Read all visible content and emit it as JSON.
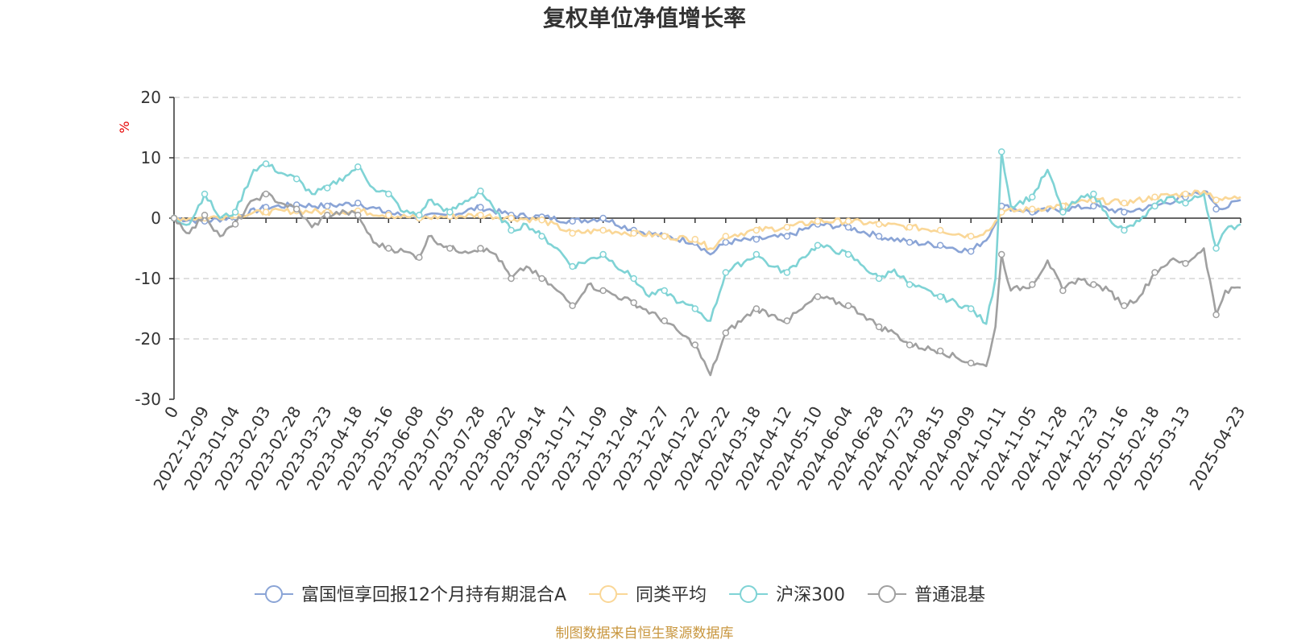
{
  "chart_data": {
    "type": "line",
    "title": "复权单位净值增长率",
    "ylabel": "%",
    "ylim": [
      -30,
      20
    ],
    "yticks": [
      20,
      10,
      0,
      -10,
      -20,
      -30
    ],
    "grid": true,
    "legend_position": "bottom",
    "source": "制图数据来自恒生聚源数据库",
    "x_labels": [
      "0",
      "2022-12-09",
      "2023-01-04",
      "2023-02-03",
      "2023-02-28",
      "2023-03-23",
      "2023-04-18",
      "2023-05-16",
      "2023-06-08",
      "2023-07-05",
      "2023-07-28",
      "2023-08-22",
      "2023-09-14",
      "2023-10-17",
      "2023-11-09",
      "2023-12-04",
      "2023-12-27",
      "2024-01-22",
      "2024-02-22",
      "2024-03-18",
      "2024-04-12",
      "2024-05-10",
      "2024-06-04",
      "2024-06-28",
      "2024-07-23",
      "2024-08-15",
      "2024-09-09",
      "2024-10-11",
      "2024-11-05",
      "2024-11-28",
      "2024-12-23",
      "2025-01-16",
      "2025-02-18",
      "2025-03-13",
      "2025-04-23"
    ],
    "x_label_index": [
      0,
      1,
      2,
      3,
      4,
      5,
      6,
      7,
      8,
      9,
      10,
      11,
      12,
      13,
      14,
      15,
      16,
      17,
      18,
      19,
      20,
      21,
      22,
      23,
      24,
      25,
      26,
      27,
      28,
      29,
      30,
      31,
      32,
      33,
      34.8
    ],
    "x_max_index": 34.8,
    "series": [
      {
        "name": "富国恒享回报12个月持有期混合A",
        "color": "#8aa4d6",
        "values": [
          [
            0,
            0
          ],
          [
            1,
            -0.5
          ],
          [
            2,
            0.2
          ],
          [
            3,
            1.8
          ],
          [
            4,
            2.2
          ],
          [
            5,
            2.0
          ],
          [
            6,
            2.5
          ],
          [
            7,
            0.8
          ],
          [
            8,
            0.2
          ],
          [
            9,
            0.5
          ],
          [
            10,
            1.8
          ],
          [
            11,
            0.5
          ],
          [
            12,
            0.2
          ],
          [
            13,
            -0.5
          ],
          [
            14,
            0
          ],
          [
            15,
            -2.0
          ],
          [
            16,
            -3.0
          ],
          [
            17,
            -4.0
          ],
          [
            17.5,
            -6.0
          ],
          [
            18,
            -4.0
          ],
          [
            19,
            -3.5
          ],
          [
            20,
            -3.0
          ],
          [
            21,
            -1.0
          ],
          [
            22,
            -1.5
          ],
          [
            23,
            -3.0
          ],
          [
            24,
            -4.0
          ],
          [
            25,
            -4.5
          ],
          [
            26,
            -5.5
          ],
          [
            26.6,
            -3.0
          ],
          [
            27,
            2.0
          ],
          [
            28,
            1.0
          ],
          [
            29,
            1.5
          ],
          [
            30,
            2.0
          ],
          [
            31,
            1.0
          ],
          [
            32,
            2.0
          ],
          [
            33,
            3.5
          ],
          [
            33.6,
            4.5
          ],
          [
            34.2,
            1.5
          ],
          [
            34.8,
            3.0
          ]
        ]
      },
      {
        "name": "同类平均",
        "color": "#fad797",
        "values": [
          [
            0,
            0
          ],
          [
            1,
            0
          ],
          [
            2,
            0.5
          ],
          [
            3,
            1.0
          ],
          [
            4,
            1.2
          ],
          [
            5,
            1.0
          ],
          [
            6,
            1.2
          ],
          [
            7,
            0.5
          ],
          [
            8,
            0
          ],
          [
            9,
            0.3
          ],
          [
            10,
            0.5
          ],
          [
            11,
            0
          ],
          [
            12,
            -0.3
          ],
          [
            13,
            -2.5
          ],
          [
            14,
            -2.0
          ],
          [
            15,
            -2.5
          ],
          [
            16,
            -3.0
          ],
          [
            17,
            -3.5
          ],
          [
            17.5,
            -5.0
          ],
          [
            18,
            -3.0
          ],
          [
            19,
            -2.0
          ],
          [
            20,
            -1.5
          ],
          [
            21,
            -0.5
          ],
          [
            22,
            -0.5
          ],
          [
            23,
            -1.0
          ],
          [
            24,
            -1.5
          ],
          [
            25,
            -2.0
          ],
          [
            26,
            -3.0
          ],
          [
            26.6,
            -2.0
          ],
          [
            27,
            1.0
          ],
          [
            28,
            1.5
          ],
          [
            29,
            2.0
          ],
          [
            30,
            3.0
          ],
          [
            31,
            2.5
          ],
          [
            32,
            3.5
          ],
          [
            33,
            4.0
          ],
          [
            33.6,
            4.5
          ],
          [
            34.2,
            3.0
          ],
          [
            34.8,
            3.5
          ]
        ]
      },
      {
        "name": "沪深300",
        "color": "#7fd3d5",
        "values": [
          [
            0,
            0
          ],
          [
            0.5,
            -1.0
          ],
          [
            1,
            4.0
          ],
          [
            1.5,
            0
          ],
          [
            2,
            1.0
          ],
          [
            2.6,
            8.0
          ],
          [
            3,
            9.0
          ],
          [
            3.5,
            7.5
          ],
          [
            4,
            6.5
          ],
          [
            4.5,
            4.0
          ],
          [
            5,
            5.0
          ],
          [
            5.6,
            7.0
          ],
          [
            6,
            8.5
          ],
          [
            6.5,
            5.0
          ],
          [
            7,
            4.0
          ],
          [
            7.5,
            1.0
          ],
          [
            8,
            0.5
          ],
          [
            8.3,
            3.0
          ],
          [
            9,
            1.0
          ],
          [
            10,
            4.5
          ],
          [
            10.5,
            1.0
          ],
          [
            11,
            -2.0
          ],
          [
            11.5,
            -1.0
          ],
          [
            12,
            -3.0
          ],
          [
            12.5,
            -5.0
          ],
          [
            13,
            -8.0
          ],
          [
            14,
            -6.0
          ],
          [
            15,
            -10.0
          ],
          [
            15.5,
            -13.0
          ],
          [
            16,
            -12.0
          ],
          [
            16.5,
            -14.0
          ],
          [
            17,
            -15.0
          ],
          [
            17.5,
            -17.0
          ],
          [
            18,
            -9.0
          ],
          [
            19,
            -6.0
          ],
          [
            19.5,
            -8.0
          ],
          [
            20,
            -9.0
          ],
          [
            20.5,
            -6.5
          ],
          [
            21,
            -4.5
          ],
          [
            22,
            -6.0
          ],
          [
            22.5,
            -8.0
          ],
          [
            23,
            -10.0
          ],
          [
            23.5,
            -8.5
          ],
          [
            24,
            -11.0
          ],
          [
            25,
            -13.0
          ],
          [
            26,
            -15.0
          ],
          [
            26.5,
            -17.5
          ],
          [
            26.8,
            -10.0
          ],
          [
            27,
            11.0
          ],
          [
            27.3,
            2.0
          ],
          [
            28,
            3.5
          ],
          [
            28.5,
            8.0
          ],
          [
            29,
            1.0
          ],
          [
            29.5,
            3.0
          ],
          [
            30,
            4.0
          ],
          [
            30.5,
            0
          ],
          [
            31,
            -2.0
          ],
          [
            31.5,
            -0.5
          ],
          [
            32,
            2.0
          ],
          [
            32.5,
            3.5
          ],
          [
            33,
            2.5
          ],
          [
            33.6,
            4.0
          ],
          [
            34,
            -5.0
          ],
          [
            34.3,
            -2.0
          ],
          [
            34.8,
            -1.0
          ]
        ]
      },
      {
        "name": "普通混基",
        "color": "#a0a0a0",
        "values": [
          [
            0,
            0
          ],
          [
            0.5,
            -2.5
          ],
          [
            1,
            0.5
          ],
          [
            1.5,
            -3.0
          ],
          [
            2,
            -1.0
          ],
          [
            2.6,
            3.0
          ],
          [
            3,
            4.0
          ],
          [
            3.5,
            2.5
          ],
          [
            4,
            1.5
          ],
          [
            4.5,
            -1.5
          ],
          [
            5,
            0.5
          ],
          [
            5.6,
            1.0
          ],
          [
            6,
            0.5
          ],
          [
            6.5,
            -4.0
          ],
          [
            7,
            -5.0
          ],
          [
            7.5,
            -5.5
          ],
          [
            8,
            -6.5
          ],
          [
            8.3,
            -3.0
          ],
          [
            9,
            -5.0
          ],
          [
            9.5,
            -5.5
          ],
          [
            10,
            -5.0
          ],
          [
            10.5,
            -6.0
          ],
          [
            11,
            -10.0
          ],
          [
            11.5,
            -8.0
          ],
          [
            12,
            -10.0
          ],
          [
            12.5,
            -12.0
          ],
          [
            13,
            -14.5
          ],
          [
            13.5,
            -11.0
          ],
          [
            14,
            -12.0
          ],
          [
            15,
            -14.0
          ],
          [
            16,
            -17.0
          ],
          [
            16.5,
            -19.0
          ],
          [
            17,
            -21.0
          ],
          [
            17.5,
            -26.0
          ],
          [
            18,
            -19.0
          ],
          [
            19,
            -15.0
          ],
          [
            19.5,
            -16.0
          ],
          [
            20,
            -17.0
          ],
          [
            20.5,
            -15.0
          ],
          [
            21,
            -13.0
          ],
          [
            22,
            -14.5
          ],
          [
            22.5,
            -16.0
          ],
          [
            23,
            -18.0
          ],
          [
            23.5,
            -19.0
          ],
          [
            24,
            -21.0
          ],
          [
            25,
            -22.0
          ],
          [
            26,
            -24.0
          ],
          [
            26.5,
            -24.5
          ],
          [
            26.8,
            -18.0
          ],
          [
            27,
            -6.0
          ],
          [
            27.3,
            -12.0
          ],
          [
            28,
            -11.0
          ],
          [
            28.5,
            -7.0
          ],
          [
            29,
            -12.0
          ],
          [
            29.5,
            -10.0
          ],
          [
            30,
            -11.0
          ],
          [
            30.5,
            -12.0
          ],
          [
            31,
            -14.5
          ],
          [
            31.5,
            -13.0
          ],
          [
            32,
            -9.0
          ],
          [
            32.5,
            -7.0
          ],
          [
            33,
            -7.5
          ],
          [
            33.6,
            -5.0
          ],
          [
            34,
            -16.0
          ],
          [
            34.3,
            -12.0
          ],
          [
            34.8,
            -11.5
          ]
        ]
      }
    ]
  }
}
